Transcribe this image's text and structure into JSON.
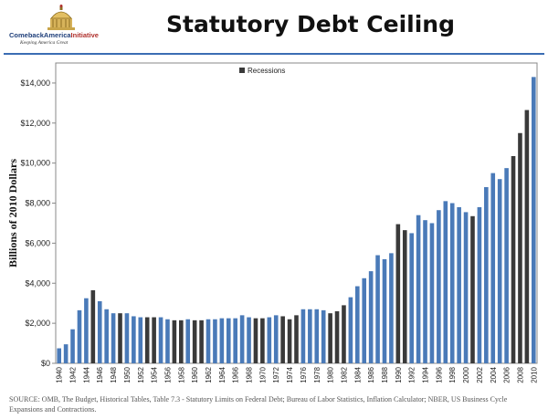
{
  "header": {
    "logo_text_main": "ComebackAmerica",
    "logo_text_accent": "Initiative",
    "logo_tagline": "Keeping America Great",
    "title": "Statutory Debt Ceiling"
  },
  "colors": {
    "rule": "#3b6db3",
    "normal_bar": "#4a7ab8",
    "recession_bar": "#3a3a3a",
    "axis": "#888888"
  },
  "chart_data": {
    "type": "bar",
    "ylabel": "Billions of 2010  Dollars",
    "ylim": [
      0,
      15000
    ],
    "yticks": [
      0,
      2000,
      4000,
      6000,
      8000,
      10000,
      12000,
      14000
    ],
    "ytick_labels": [
      "$0",
      "$2,000",
      "$4,000",
      "$6,000",
      "$8,000",
      "$10,000",
      "$12,000",
      "$14,000"
    ],
    "xtick_labels": [
      "1940",
      "1942",
      "1944",
      "1946",
      "1948",
      "1950",
      "1952",
      "1954",
      "1956",
      "1958",
      "1960",
      "1962",
      "1964",
      "1966",
      "1968",
      "1970",
      "1972",
      "1974",
      "1976",
      "1978",
      "1980",
      "1982",
      "1984",
      "1986",
      "1988",
      "1990",
      "1992",
      "1994",
      "1996",
      "1998",
      "2000",
      "2002",
      "2004",
      "2006",
      "2008",
      "2010"
    ],
    "legend": {
      "label": "Recessions",
      "placement": "top-center"
    },
    "grid": false,
    "categories": [
      1940,
      1941,
      1942,
      1943,
      1944,
      1945,
      1946,
      1947,
      1948,
      1949,
      1950,
      1951,
      1952,
      1953,
      1954,
      1955,
      1956,
      1957,
      1958,
      1959,
      1960,
      1961,
      1962,
      1963,
      1964,
      1965,
      1966,
      1967,
      1968,
      1969,
      1970,
      1971,
      1972,
      1973,
      1974,
      1975,
      1976,
      1977,
      1978,
      1979,
      1980,
      1981,
      1982,
      1983,
      1984,
      1985,
      1986,
      1987,
      1988,
      1989,
      1990,
      1991,
      1992,
      1993,
      1994,
      1995,
      1996,
      1997,
      1998,
      1999,
      2000,
      2001,
      2002,
      2003,
      2004,
      2005,
      2006,
      2007,
      2008,
      2009,
      2010
    ],
    "values": [
      750,
      950,
      1700,
      2650,
      3250,
      3650,
      3100,
      2700,
      2500,
      2500,
      2500,
      2350,
      2300,
      2300,
      2300,
      2300,
      2200,
      2150,
      2150,
      2200,
      2150,
      2150,
      2200,
      2200,
      2250,
      2250,
      2250,
      2400,
      2300,
      2250,
      2250,
      2300,
      2400,
      2350,
      2200,
      2400,
      2700,
      2700,
      2700,
      2650,
      2500,
      2600,
      2900,
      3300,
      3850,
      4250,
      4600,
      5400,
      5200,
      5500,
      6950,
      6650,
      6500,
      7400,
      7150,
      7000,
      7650,
      8100,
      8000,
      7800,
      7550,
      7350,
      7800,
      8800,
      9500,
      9200,
      9750,
      10350,
      11500,
      12650,
      14300
    ],
    "recession": [
      false,
      false,
      false,
      false,
      false,
      true,
      false,
      false,
      false,
      true,
      false,
      false,
      false,
      true,
      true,
      false,
      false,
      true,
      true,
      false,
      true,
      true,
      false,
      false,
      false,
      false,
      false,
      false,
      false,
      true,
      true,
      false,
      false,
      true,
      true,
      true,
      false,
      false,
      false,
      false,
      true,
      true,
      true,
      false,
      false,
      false,
      false,
      false,
      false,
      false,
      true,
      true,
      false,
      false,
      false,
      false,
      false,
      false,
      false,
      false,
      false,
      true,
      false,
      false,
      false,
      false,
      false,
      true,
      true,
      true,
      false
    ]
  },
  "source_note": "SOURCE: OMB, The Budget, Historical Tables, Table 7.3 - Statutory Limits on Federal Debt; Bureau of Labor Statistics, Inflation Calculator; NBER, US Business Cycle Expansions and Contractions."
}
